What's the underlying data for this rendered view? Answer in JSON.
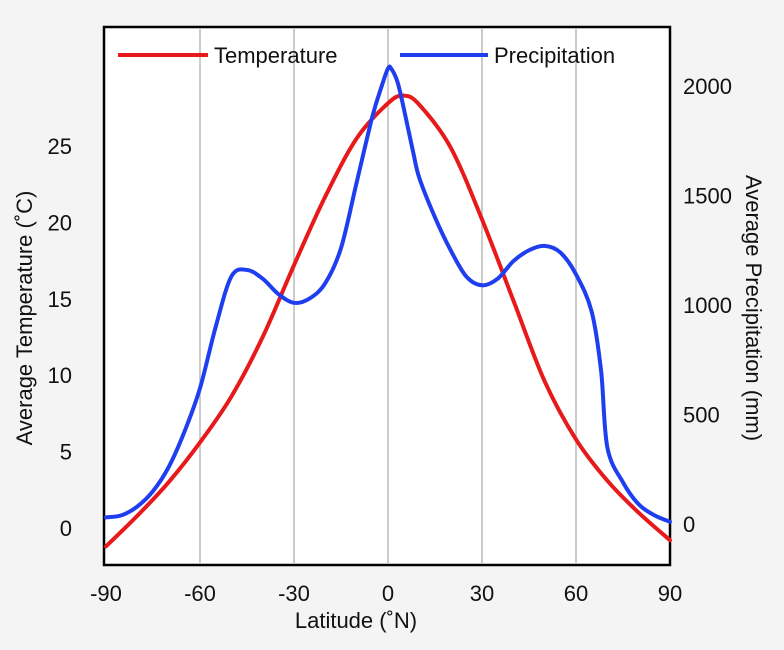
{
  "chart_data": {
    "type": "line",
    "title": "",
    "xlabel": "Latitude (˚N)",
    "ylabel_left": "Average Temperature (˚C)",
    "ylabel_right": "Average Precipitation (mm)",
    "xlim": [
      -90,
      90
    ],
    "ylim_left": [
      -1,
      30
    ],
    "ylim_right": [
      0,
      2100
    ],
    "x_ticks": [
      -90,
      -60,
      -30,
      0,
      30,
      60,
      90
    ],
    "x_tick_labels": [
      "-90",
      "-60",
      "-30",
      "0",
      "30",
      "60",
      "90"
    ],
    "y_left_ticks": [
      0,
      5,
      10,
      15,
      20,
      25
    ],
    "y_left_tick_labels": [
      "0",
      "5",
      "10",
      "15",
      "20",
      "25"
    ],
    "y_right_ticks": [
      0,
      500,
      1000,
      1500,
      2000
    ],
    "y_right_tick_labels": [
      "0",
      "500",
      "1000",
      "1500",
      "2000"
    ],
    "grid": {
      "vertical_at": [
        -60,
        -30,
        0,
        30,
        60
      ],
      "color": "#bbbbbb"
    },
    "legend": {
      "placement": "top",
      "orientation": "horizontal"
    },
    "series": [
      {
        "name": "Temperature",
        "axis": "left",
        "color": "#e8191a",
        "x": [
          -90,
          -80,
          -70,
          -60,
          -50,
          -40,
          -30,
          -20,
          -10,
          0,
          5,
          10,
          20,
          30,
          40,
          50,
          60,
          70,
          80,
          90
        ],
        "y": [
          -1.2,
          0.8,
          3.0,
          5.6,
          8.6,
          12.5,
          17.2,
          21.7,
          25.5,
          27.8,
          28.3,
          27.7,
          24.9,
          20.2,
          14.9,
          9.6,
          5.8,
          3.1,
          1.0,
          -0.8
        ]
      },
      {
        "name": "Precipitation",
        "axis": "right",
        "color": "#1f3ef0",
        "x": [
          -90,
          -85,
          -80,
          -75,
          -70,
          -65,
          -60,
          -55,
          -50,
          -45,
          -40,
          -35,
          -30,
          -25,
          -20,
          -15,
          -10,
          -5,
          -2,
          0,
          1,
          3,
          5,
          8,
          10,
          15,
          20,
          25,
          30,
          35,
          40,
          45,
          50,
          55,
          60,
          65,
          68,
          70,
          75,
          80,
          85,
          90
        ],
        "y": [
          30,
          40,
          80,
          150,
          260,
          420,
          620,
          900,
          1130,
          1160,
          1120,
          1050,
          1010,
          1030,
          1100,
          1260,
          1560,
          1860,
          2000,
          2080,
          2080,
          2020,
          1900,
          1700,
          1580,
          1400,
          1250,
          1130,
          1090,
          1120,
          1200,
          1250,
          1270,
          1240,
          1140,
          970,
          700,
          350,
          190,
          90,
          40,
          10
        ]
      }
    ]
  }
}
